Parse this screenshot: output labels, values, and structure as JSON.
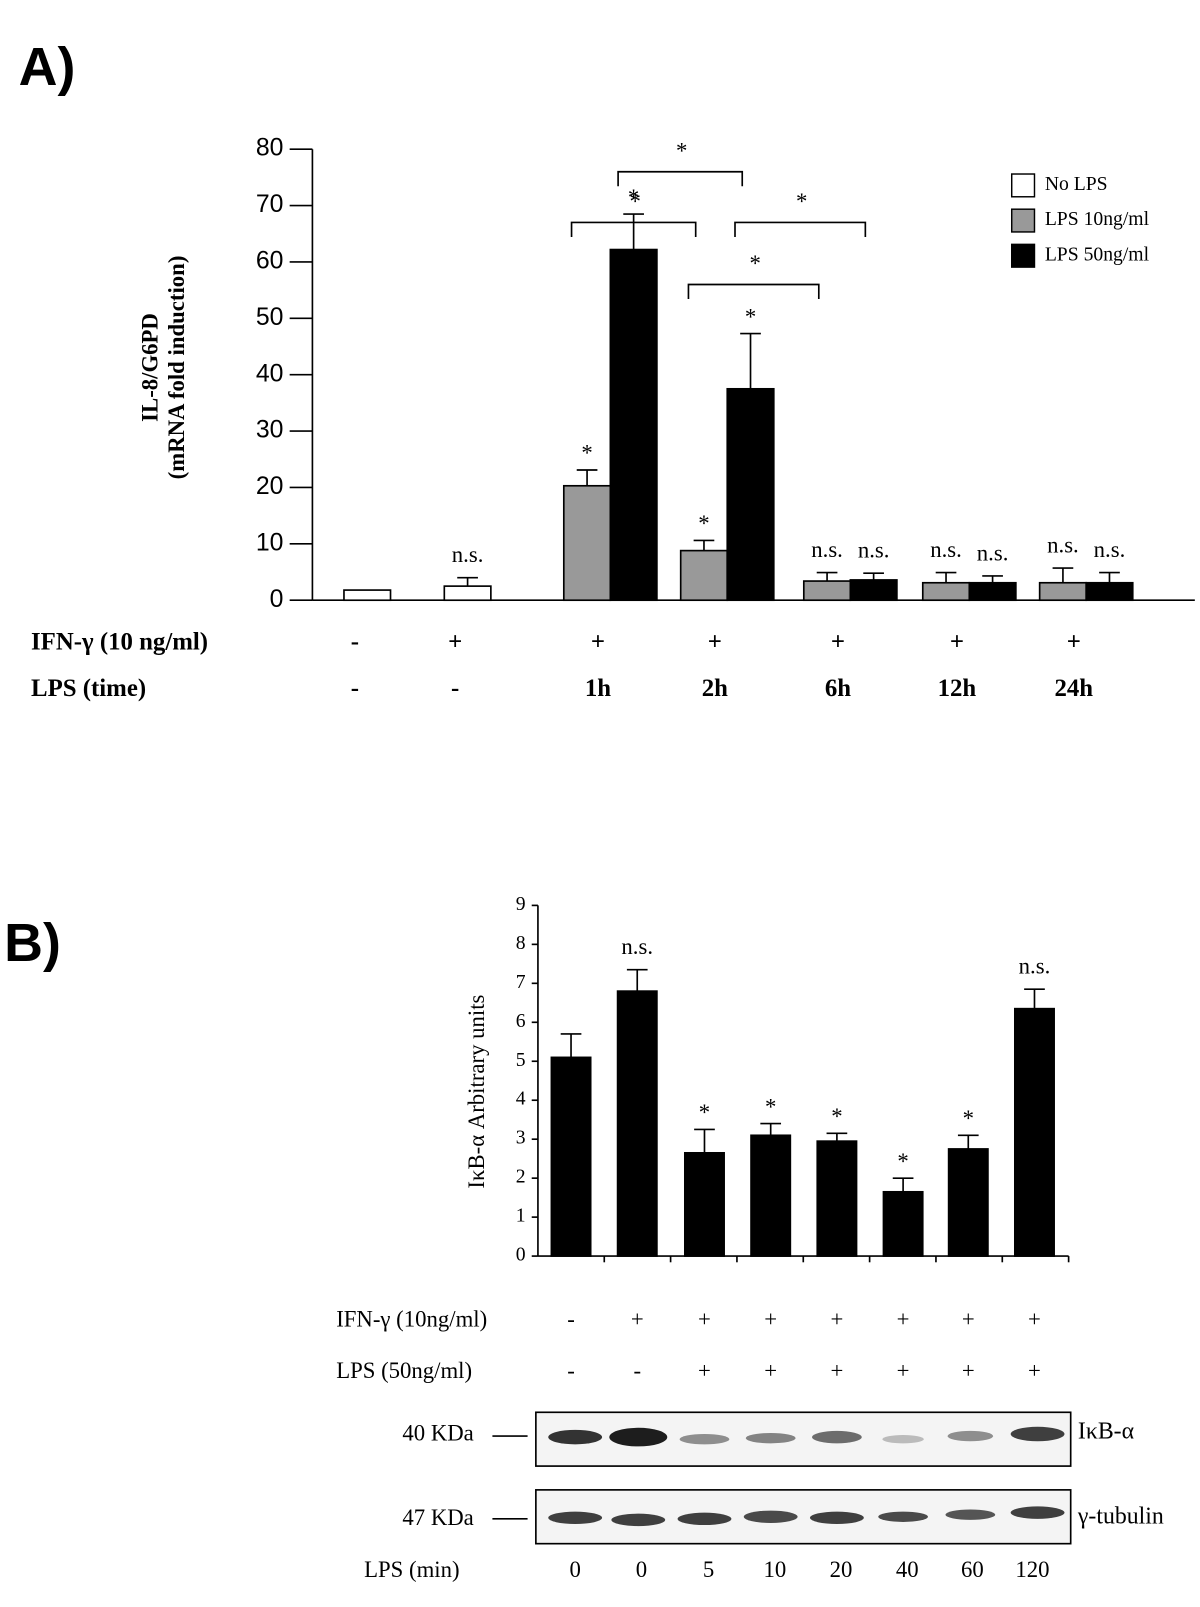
{
  "chart_data": [
    {
      "type": "bar",
      "panel_label": "A)",
      "ylabel": [
        "IL-8/G6PD",
        "(mRNA fold induction)"
      ],
      "ylim": [
        0,
        80
      ],
      "yticks": [
        0,
        10,
        20,
        30,
        40,
        50,
        60,
        70,
        80
      ],
      "legend": "top-right",
      "series": [
        {
          "name": "No LPS",
          "color": "#ffffff",
          "values": [
            1.8,
            2.5,
            null,
            null,
            null,
            null,
            null
          ],
          "errors": [
            null,
            1.5,
            null,
            null,
            null,
            null,
            null
          ],
          "annotations": [
            null,
            "n.s.",
            null,
            null,
            null,
            null,
            null
          ]
        },
        {
          "name": "LPS 10ng/ml",
          "color": "#999999",
          "values": [
            null,
            null,
            20.3,
            8.8,
            3.4,
            3.1,
            3.1
          ],
          "errors": [
            null,
            null,
            2.8,
            1.8,
            1.5,
            1.8,
            2.6
          ],
          "annotations": [
            null,
            null,
            "*",
            "*",
            "n.s.",
            "n.s.",
            "n.s."
          ]
        },
        {
          "name": "LPS 50ng/ml",
          "color": "#000000",
          "values": [
            null,
            null,
            62.2,
            37.5,
            3.6,
            3.1,
            3.1
          ],
          "errors": [
            null,
            null,
            6.3,
            9.8,
            1.2,
            1.2,
            1.8
          ],
          "annotations": [
            null,
            null,
            "*",
            "*",
            "n.s.",
            "n.s.",
            "n.s."
          ]
        }
      ],
      "brackets": [
        {
          "from": [
            2,
            2
          ],
          "to": [
            2,
            3
          ],
          "y": 76,
          "label": "*"
        },
        {
          "from": [
            1,
            2
          ],
          "to": [
            1,
            3
          ],
          "y": 67,
          "label": "*"
        },
        {
          "from": [
            2,
            3
          ],
          "to": [
            2,
            4
          ],
          "y": 67,
          "label": "*"
        },
        {
          "from": [
            1,
            3
          ],
          "to": [
            1,
            4
          ],
          "y": 56,
          "label": "*"
        }
      ],
      "conditions": [
        {
          "label": "IFN-γ (10 ng/ml)",
          "values": [
            "-",
            "+",
            "+",
            "+",
            "+",
            "+",
            "+"
          ]
        },
        {
          "label": "LPS (time)",
          "values": [
            "-",
            "-",
            "1h",
            "2h",
            "6h",
            "12h",
            "24h"
          ]
        }
      ]
    },
    {
      "type": "bar",
      "panel_label": "B)",
      "ylabel": [
        "IκB-α Arbitrary units"
      ],
      "ylim": [
        0,
        9
      ],
      "yticks": [
        0,
        1,
        2,
        3,
        4,
        5,
        6,
        7,
        8,
        9
      ],
      "series": [
        {
          "color": "#000000",
          "values": [
            5.1,
            6.8,
            2.65,
            3.1,
            2.95,
            1.65,
            2.75,
            6.35
          ],
          "errors": [
            0.6,
            0.55,
            0.6,
            0.3,
            0.2,
            0.35,
            0.35,
            0.5
          ],
          "annotations": [
            null,
            "n.s.",
            "*",
            "*",
            "*",
            "*",
            "*",
            "n.s."
          ]
        }
      ],
      "conditions": [
        {
          "label": "IFN-γ (10ng/ml)",
          "values": [
            "-",
            "+",
            "+",
            "+",
            "+",
            "+",
            "+",
            "+"
          ]
        },
        {
          "label": "LPS (50ng/ml)",
          "values": [
            "-",
            "-",
            "+",
            "+",
            "+",
            "+",
            "+",
            "+"
          ]
        }
      ],
      "blot": {
        "rows": [
          {
            "marker": "40 KDa",
            "protein": "IκB-α"
          },
          {
            "marker": "47 KDa",
            "protein": "γ-tubulin"
          }
        ],
        "time_label": "LPS (min)",
        "times": [
          0,
          0,
          5,
          10,
          20,
          40,
          60,
          120
        ]
      }
    }
  ]
}
